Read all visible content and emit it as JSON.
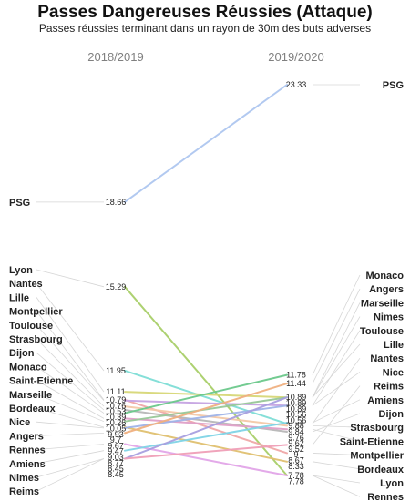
{
  "chart_data": {
    "type": "slope",
    "title": "Passes Dangereuses Réussies (Attaque)",
    "subtitle": "Passes réussies terminant dans un rayon de 30m des buts adverses",
    "columns": [
      "2018/2019",
      "2019/2020"
    ],
    "ylim": [
      7.78,
      23.33
    ],
    "series": [
      {
        "name": "PSG",
        "values": [
          18.66,
          23.33
        ],
        "value_labels": [
          "18.66",
          "23.33"
        ],
        "color": "#aec7f0"
      },
      {
        "name": "Lyon",
        "values": [
          15.29,
          7.78
        ],
        "value_labels": [
          "15.29",
          "7.78"
        ],
        "color": "#a9cf6a"
      },
      {
        "name": "Nantes",
        "values": [
          11.95,
          9.84
        ],
        "value_labels": [
          "11.95",
          "9.84"
        ],
        "color": "#7fded6"
      },
      {
        "name": "Lille",
        "values": [
          11.11,
          10.89
        ],
        "value_labels": [
          "11.11",
          "10.89"
        ],
        "color": "#d8d878"
      },
      {
        "name": "Montpellier",
        "values": [
          10.79,
          8.67
        ],
        "value_labels": [
          "10.79",
          "8.67"
        ],
        "color": "#f0a8a8"
      },
      {
        "name": "Toulouse",
        "values": [
          10.76,
          10.56
        ],
        "value_labels": [
          "10.76",
          "10.56"
        ],
        "color": "#c6a4e2"
      },
      {
        "name": "Strasbourg",
        "values": [
          10.53,
          9.76
        ],
        "value_labels": [
          "10.53",
          "9.76"
        ],
        "color": "#f4c9a8"
      },
      {
        "name": "Dijon",
        "values": [
          10.39,
          9.52
        ],
        "value_labels": [
          "10.39",
          "9.52"
        ],
        "color": "#b8b8b8"
      },
      {
        "name": "Monaco",
        "values": [
          10.26,
          11.78
        ],
        "value_labels": [
          "10.26",
          "11.78"
        ],
        "color": "#6cc98c"
      },
      {
        "name": "Saint-Etienne",
        "values": [
          10.05,
          9.62
        ],
        "value_labels": [
          "10.05",
          "9.62"
        ],
        "color": "#e0a0c8"
      },
      {
        "name": "Marseille",
        "values": [
          9.93,
          10.89
        ],
        "value_labels": [
          "9.93",
          "10.89"
        ],
        "color": "#98c898"
      },
      {
        "name": "Bordeaux",
        "values": [
          9.7,
          8.33
        ],
        "value_labels": [
          "9.7",
          "8.33"
        ],
        "color": "#e0c070"
      },
      {
        "name": "Nice",
        "values": [
          9.67,
          10.56
        ],
        "value_labels": [
          "9.67",
          "10.56"
        ],
        "color": "#a0b4e8"
      },
      {
        "name": "Angers",
        "values": [
          9.47,
          11.44
        ],
        "value_labels": [
          "9.47",
          "11.44"
        ],
        "color": "#f0b080"
      },
      {
        "name": "Rennes",
        "values": [
          9.03,
          7.78
        ],
        "value_labels": [
          "9.03",
          "7.78"
        ],
        "color": "#e2a6e8"
      },
      {
        "name": "Amiens",
        "values": [
          8.77,
          9.88
        ],
        "value_labels": [
          "8.77",
          "9.88"
        ],
        "color": "#80d4e6"
      },
      {
        "name": "Nimes",
        "values": [
          8.45,
          10.89
        ],
        "value_labels": [
          "8.45",
          "10.89"
        ],
        "color": "#a8a0e0"
      },
      {
        "name": "Reims",
        "values": [
          8.45,
          9.0
        ],
        "value_labels": [
          "8.45",
          "9"
        ],
        "color": "#f0a0b8"
      }
    ],
    "left_order": [
      "Lyon",
      "Nantes",
      "Lille",
      "Montpellier",
      "Toulouse",
      "Strasbourg",
      "Dijon",
      "Monaco",
      "Saint-Etienne",
      "Marseille",
      "Bordeaux",
      "Nice",
      "Angers",
      "Rennes",
      "Amiens",
      "Nimes",
      "Reims"
    ],
    "right_order": [
      "Monaco",
      "Angers",
      "Marseille",
      "Nimes",
      "Toulouse",
      "Lille",
      "Nantes",
      "Nice",
      "Reims",
      "Amiens",
      "Dijon",
      "Strasbourg",
      "Saint-Etienne",
      "Montpellier",
      "Bordeaux",
      "Lyon",
      "Rennes"
    ],
    "grid": false,
    "legend": "none"
  }
}
